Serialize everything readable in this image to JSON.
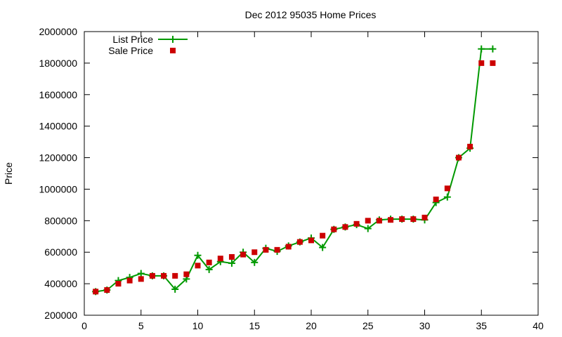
{
  "chart_data": {
    "type": "line",
    "title": "Dec 2012 95035 Home Prices",
    "xlabel": "",
    "ylabel": "Price",
    "xlim": [
      0,
      40
    ],
    "ylim": [
      200000,
      2000000
    ],
    "xticks": [
      0,
      5,
      10,
      15,
      20,
      25,
      30,
      35,
      40
    ],
    "yticks": [
      200000,
      400000,
      600000,
      800000,
      1000000,
      1200000,
      1400000,
      1600000,
      1800000,
      2000000
    ],
    "grid": false,
    "legend_position": "top-left",
    "series": [
      {
        "name": "List Price",
        "style": "linespoints",
        "marker": "plus",
        "color": "#009900",
        "x": [
          1,
          2,
          3,
          4,
          5,
          6,
          7,
          8,
          9,
          10,
          11,
          12,
          13,
          14,
          15,
          16,
          17,
          18,
          19,
          20,
          21,
          22,
          23,
          24,
          25,
          26,
          27,
          28,
          29,
          30,
          31,
          32,
          33,
          34,
          35,
          36
        ],
        "y": [
          350000,
          360000,
          420000,
          440000,
          465000,
          450000,
          450000,
          365000,
          430000,
          580000,
          490000,
          540000,
          530000,
          600000,
          535000,
          625000,
          605000,
          640000,
          665000,
          690000,
          630000,
          745000,
          760000,
          775000,
          750000,
          805000,
          810000,
          810000,
          810000,
          805000,
          915000,
          950000,
          1200000,
          1260000,
          1890000,
          1890000
        ]
      },
      {
        "name": "Sale Price",
        "style": "points",
        "marker": "square",
        "color": "#cc0000",
        "x": [
          1,
          2,
          3,
          4,
          5,
          6,
          7,
          8,
          9,
          10,
          11,
          12,
          13,
          14,
          15,
          16,
          17,
          18,
          19,
          20,
          21,
          22,
          23,
          24,
          25,
          26,
          27,
          28,
          29,
          30,
          31,
          32,
          33,
          34,
          35,
          36
        ],
        "y": [
          350000,
          360000,
          400000,
          420000,
          430000,
          450000,
          450000,
          450000,
          460000,
          515000,
          535000,
          560000,
          570000,
          585000,
          600000,
          615000,
          615000,
          635000,
          665000,
          675000,
          705000,
          745000,
          760000,
          780000,
          800000,
          800000,
          805000,
          810000,
          810000,
          820000,
          935000,
          1005000,
          1200000,
          1270000,
          1800000,
          1800000
        ]
      }
    ]
  }
}
